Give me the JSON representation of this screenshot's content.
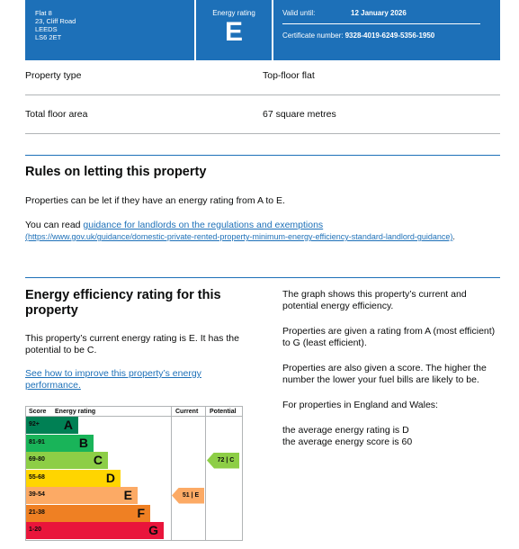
{
  "header": {
    "address": [
      "Flat 8",
      "23, Cliff Road",
      "LEEDS",
      "LS6 2ET"
    ],
    "rating_label": "Energy rating",
    "rating_letter": "E",
    "valid_until_label": "Valid until:",
    "valid_until_value": "12 January 2026",
    "certificate_label": "Certificate number:",
    "certificate_value": "9328-4019-6249-5356-1950"
  },
  "property": [
    {
      "label": "Property type",
      "value": "Top-floor flat"
    },
    {
      "label": "Total floor area",
      "value": "67 square metres"
    }
  ],
  "letting": {
    "title": "Rules on letting this property",
    "para1": "Properties can be let if they have an energy rating from A to E.",
    "para2_prefix": "You can read ",
    "para2_link": "guidance for landlords on the regulations and exemptions",
    "para2_url": "(https://www.gov.uk/guidance/domestic-private-rented-property-minimum-energy-efficiency-standard-landlord-guidance)",
    "para2_suffix": "."
  },
  "efficiency": {
    "title": "Energy efficiency rating for this property",
    "para1": "This property’s current energy rating is E. It has the potential to be C.",
    "link": "See how to improve this property’s energy performance.",
    "right": [
      "The graph shows this property’s current and potential energy efficiency.",
      "Properties are given a rating from A (most efficient) to G (least efficient).",
      "Properties are also given a score. The higher the number the lower your fuel bills are likely to be.",
      "For properties in England and Wales:",
      "the average energy rating is D",
      "the average energy score is 60"
    ]
  },
  "chart_data": {
    "type": "table",
    "headers": {
      "score": "Score",
      "rating": "Energy rating",
      "current": "Current",
      "potential": "Potential"
    },
    "bands": [
      {
        "range": "92+",
        "letter": "A",
        "color": "#008054"
      },
      {
        "range": "81-91",
        "letter": "B",
        "color": "#19b459"
      },
      {
        "range": "69-80",
        "letter": "C",
        "color": "#8dce46"
      },
      {
        "range": "55-68",
        "letter": "D",
        "color": "#ffd500"
      },
      {
        "range": "39-54",
        "letter": "E",
        "color": "#fcaa65"
      },
      {
        "range": "21-38",
        "letter": "F",
        "color": "#ef8023"
      },
      {
        "range": "1-20",
        "letter": "G",
        "color": "#e9153b"
      }
    ],
    "current": {
      "score": 51,
      "letter": "E",
      "label": "51 | E",
      "color": "#fcaa65"
    },
    "potential": {
      "score": 72,
      "letter": "C",
      "label": "72 | C",
      "color": "#8dce46"
    }
  }
}
